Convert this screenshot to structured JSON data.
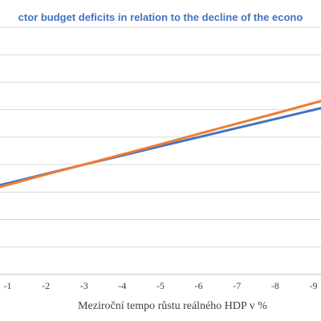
{
  "chart_data": {
    "type": "line",
    "title": "ctor budget deficits in relation to the decline of the econo",
    "xlabel": "Meziroční tempo růstu reálného HDP v %",
    "ylabel": "",
    "x": [
      -1,
      -2,
      -3,
      -4,
      -5,
      -6,
      -7,
      -8,
      -9
    ],
    "x_tick_labels": [
      "-1",
      "-2",
      "-3",
      "-4",
      "-5",
      "-6",
      "-7",
      "-8",
      "-9"
    ],
    "xlim": [
      -0.8,
      -9.2
    ],
    "ylim": [
      0,
      9
    ],
    "grid": true,
    "series": [
      {
        "color": "#4472C4",
        "values": [
          3.32,
          3.66,
          4.0,
          4.33,
          4.67,
          5.0,
          5.33,
          5.66,
          5.99
        ]
      },
      {
        "color": "#ED7D31",
        "values": [
          3.26,
          3.64,
          4.0,
          4.37,
          4.74,
          5.12,
          5.49,
          5.86,
          6.24
        ]
      }
    ]
  }
}
